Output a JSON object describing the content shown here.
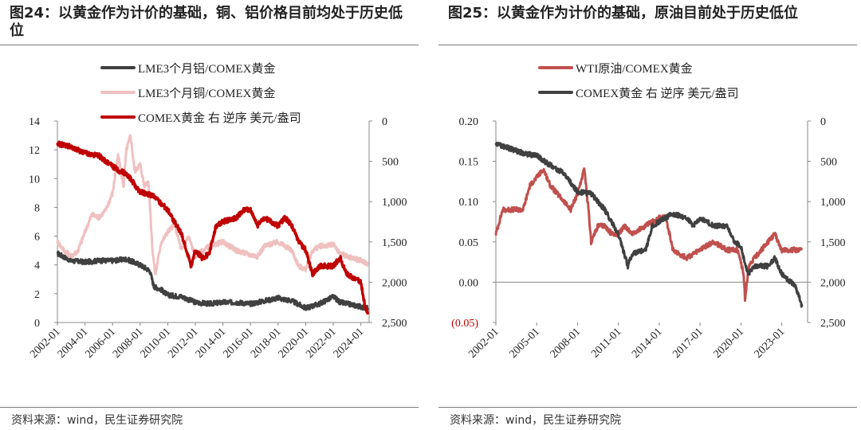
{
  "charts": [
    {
      "title": "图24：以黄金作为计价的基础，铜、铝价格目前均处于历史低位",
      "source": "资料来源：wind，民生证券研究院",
      "chart_data": {
        "type": "line",
        "x_ticks": [
          "2002-01",
          "2004-01",
          "2006-01",
          "2008-01",
          "2010-01",
          "2012-01",
          "2014-01",
          "2016-01",
          "2018-01",
          "2020-01",
          "2022-01",
          "2024-01"
        ],
        "left_axis": {
          "ylim": [
            0,
            14
          ],
          "ticks": [
            "0",
            "2",
            "4",
            "6",
            "8",
            "10",
            "12",
            "14"
          ]
        },
        "right_axis": {
          "ylim": [
            0,
            2500
          ],
          "inverted": true,
          "ticks": [
            "0",
            "500",
            "1,000",
            "1,500",
            "2,000",
            "2,500"
          ]
        },
        "series": [
          {
            "name": "LME3个月铝/COMEX黄金",
            "axis": "left",
            "color": "#404040",
            "points": [
              [
                2002.0,
                4.8
              ],
              [
                2003.0,
                4.3
              ],
              [
                2004.0,
                4.2
              ],
              [
                2005.0,
                4.3
              ],
              [
                2006.0,
                4.3
              ],
              [
                2007.0,
                4.4
              ],
              [
                2008.0,
                4.0
              ],
              [
                2008.7,
                3.6
              ],
              [
                2009.0,
                2.5
              ],
              [
                2009.5,
                2.3
              ],
              [
                2010.0,
                1.9
              ],
              [
                2011.0,
                1.8
              ],
              [
                2012.0,
                1.4
              ],
              [
                2013.0,
                1.3
              ],
              [
                2014.0,
                1.4
              ],
              [
                2015.0,
                1.4
              ],
              [
                2016.0,
                1.3
              ],
              [
                2017.0,
                1.5
              ],
              [
                2018.0,
                1.7
              ],
              [
                2019.0,
                1.5
              ],
              [
                2020.0,
                1.0
              ],
              [
                2021.0,
                1.3
              ],
              [
                2022.0,
                1.8
              ],
              [
                2022.5,
                1.4
              ],
              [
                2023.0,
                1.3
              ],
              [
                2024.0,
                1.1
              ],
              [
                2024.5,
                1.0
              ]
            ]
          },
          {
            "name": "LME3个月铜/COMEX黄金",
            "axis": "left",
            "color": "#f0c0c0",
            "points": [
              [
                2002.0,
                5.6
              ],
              [
                2002.5,
                5.0
              ],
              [
                2003.0,
                4.6
              ],
              [
                2003.5,
                5.0
              ],
              [
                2004.0,
                6.3
              ],
              [
                2004.5,
                7.5
              ],
              [
                2005.0,
                7.3
              ],
              [
                2005.5,
                7.8
              ],
              [
                2006.0,
                9.0
              ],
              [
                2006.4,
                11.6
              ],
              [
                2006.8,
                9.5
              ],
              [
                2007.0,
                12.0
              ],
              [
                2007.3,
                13.0
              ],
              [
                2007.6,
                10.5
              ],
              [
                2008.0,
                11.0
              ],
              [
                2008.3,
                9.5
              ],
              [
                2008.6,
                9.8
              ],
              [
                2008.9,
                5.0
              ],
              [
                2009.1,
                3.3
              ],
              [
                2009.5,
                5.5
              ],
              [
                2010.0,
                6.3
              ],
              [
                2010.5,
                6.8
              ],
              [
                2011.0,
                5.0
              ],
              [
                2011.5,
                6.0
              ],
              [
                2012.0,
                4.6
              ],
              [
                2013.0,
                5.3
              ],
              [
                2014.0,
                5.6
              ],
              [
                2015.0,
                5.0
              ],
              [
                2016.0,
                4.7
              ],
              [
                2016.5,
                4.6
              ],
              [
                2017.0,
                5.3
              ],
              [
                2018.0,
                5.6
              ],
              [
                2019.0,
                5.0
              ],
              [
                2019.5,
                3.9
              ],
              [
                2020.0,
                3.7
              ],
              [
                2020.5,
                5.0
              ],
              [
                2021.0,
                5.3
              ],
              [
                2022.0,
                5.4
              ],
              [
                2022.5,
                4.8
              ],
              [
                2023.0,
                4.6
              ],
              [
                2024.0,
                4.3
              ],
              [
                2024.5,
                4.1
              ]
            ]
          },
          {
            "name": "COMEX黄金 右 逆序 美元/盎司",
            "axis": "right",
            "color": "#c00000",
            "points": [
              [
                2002.0,
                280
              ],
              [
                2003.0,
                320
              ],
              [
                2004.0,
                400
              ],
              [
                2005.0,
                430
              ],
              [
                2006.0,
                560
              ],
              [
                2006.5,
                620
              ],
              [
                2007.0,
                650
              ],
              [
                2008.0,
                880
              ],
              [
                2008.5,
                900
              ],
              [
                2009.0,
                940
              ],
              [
                2010.0,
                1100
              ],
              [
                2011.0,
                1400
              ],
              [
                2011.7,
                1800
              ],
              [
                2012.0,
                1600
              ],
              [
                2012.5,
                1700
              ],
              [
                2013.0,
                1650
              ],
              [
                2013.5,
                1300
              ],
              [
                2014.0,
                1250
              ],
              [
                2015.0,
                1200
              ],
              [
                2015.5,
                1100
              ],
              [
                2016.0,
                1100
              ],
              [
                2016.5,
                1300
              ],
              [
                2017.0,
                1200
              ],
              [
                2018.0,
                1300
              ],
              [
                2018.5,
                1200
              ],
              [
                2019.0,
                1300
              ],
              [
                2019.5,
                1500
              ],
              [
                2020.0,
                1600
              ],
              [
                2020.5,
                1900
              ],
              [
                2021.0,
                1800
              ],
              [
                2022.0,
                1800
              ],
              [
                2022.5,
                1700
              ],
              [
                2023.0,
                1900
              ],
              [
                2024.0,
                2000
              ],
              [
                2024.3,
                2300
              ],
              [
                2024.5,
                2400
              ]
            ]
          }
        ],
        "legend_position": "top-left"
      }
    },
    {
      "title": "图25：以黄金作为计价的基础，原油目前处于历史低位",
      "source": "资料来源：wind，民生证券研究院",
      "chart_data": {
        "type": "line",
        "x_ticks": [
          "2002-01",
          "2005-01",
          "2008-01",
          "2011-01",
          "2014-01",
          "2017-01",
          "2020-01",
          "2023-01"
        ],
        "left_axis": {
          "ylim": [
            -0.05,
            0.2
          ],
          "ticks": [
            "0.20",
            "0.15",
            "0.10",
            "0.05",
            "0.00",
            "(0.05)"
          ]
        },
        "right_axis": {
          "ylim": [
            0,
            2500
          ],
          "inverted": true,
          "ticks": [
            "0",
            "500",
            "1,000",
            "1,500",
            "2,000",
            "2,500"
          ]
        },
        "series": [
          {
            "name": "WTI原油/COMEX黄金",
            "axis": "left",
            "color": "#c0504d",
            "points": [
              [
                2002.0,
                0.06
              ],
              [
                2002.5,
                0.09
              ],
              [
                2003.0,
                0.09
              ],
              [
                2004.0,
                0.09
              ],
              [
                2004.5,
                0.12
              ],
              [
                2005.0,
                0.13
              ],
              [
                2005.5,
                0.14
              ],
              [
                2006.0,
                0.12
              ],
              [
                2006.5,
                0.11
              ],
              [
                2007.0,
                0.1
              ],
              [
                2007.5,
                0.09
              ],
              [
                2008.0,
                0.11
              ],
              [
                2008.5,
                0.14
              ],
              [
                2008.8,
                0.09
              ],
              [
                2009.0,
                0.05
              ],
              [
                2009.5,
                0.07
              ],
              [
                2010.0,
                0.07
              ],
              [
                2010.5,
                0.06
              ],
              [
                2011.0,
                0.06
              ],
              [
                2011.5,
                0.07
              ],
              [
                2012.0,
                0.06
              ],
              [
                2013.0,
                0.07
              ],
              [
                2014.0,
                0.08
              ],
              [
                2014.5,
                0.08
              ],
              [
                2015.0,
                0.04
              ],
              [
                2016.0,
                0.03
              ],
              [
                2017.0,
                0.04
              ],
              [
                2018.0,
                0.05
              ],
              [
                2019.0,
                0.04
              ],
              [
                2019.8,
                0.04
              ],
              [
                2020.2,
                0.01
              ],
              [
                2020.3,
                -0.02
              ],
              [
                2020.6,
                0.02
              ],
              [
                2021.0,
                0.03
              ],
              [
                2022.0,
                0.05
              ],
              [
                2022.5,
                0.06
              ],
              [
                2023.0,
                0.04
              ],
              [
                2024.0,
                0.04
              ],
              [
                2024.5,
                0.04
              ]
            ]
          },
          {
            "name": "COMEX黄金 右 逆序 美元/盎司",
            "axis": "right",
            "color": "#404040",
            "points": [
              [
                2002.0,
                280
              ],
              [
                2003.0,
                340
              ],
              [
                2004.0,
                400
              ],
              [
                2005.0,
                430
              ],
              [
                2006.0,
                550
              ],
              [
                2007.0,
                650
              ],
              [
                2008.0,
                880
              ],
              [
                2009.0,
                900
              ],
              [
                2010.0,
                1100
              ],
              [
                2011.0,
                1400
              ],
              [
                2011.7,
                1800
              ],
              [
                2012.0,
                1650
              ],
              [
                2013.0,
                1600
              ],
              [
                2013.5,
                1300
              ],
              [
                2014.0,
                1250
              ],
              [
                2015.0,
                1150
              ],
              [
                2016.0,
                1200
              ],
              [
                2016.5,
                1300
              ],
              [
                2017.0,
                1200
              ],
              [
                2018.0,
                1300
              ],
              [
                2019.0,
                1300
              ],
              [
                2019.5,
                1500
              ],
              [
                2020.0,
                1550
              ],
              [
                2020.5,
                1900
              ],
              [
                2021.0,
                1800
              ],
              [
                2022.0,
                1800
              ],
              [
                2022.5,
                1700
              ],
              [
                2023.0,
                1900
              ],
              [
                2024.0,
                2050
              ],
              [
                2024.5,
                2300
              ]
            ]
          }
        ],
        "legend_position": "top-left"
      }
    }
  ]
}
